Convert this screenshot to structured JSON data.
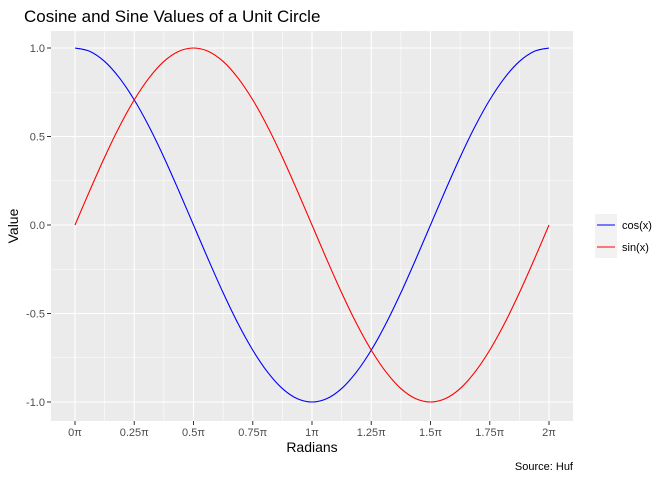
{
  "chart_data": {
    "type": "line",
    "title": "Cosine and Sine Values of a Unit Circle",
    "xlabel": "Radians",
    "ylabel": "Value",
    "caption": "Source: Huf",
    "x_unit": "π",
    "xlim": [
      0,
      2
    ],
    "ylim": [
      -1.0,
      1.0
    ],
    "x_ticks": [
      0,
      0.25,
      0.5,
      0.75,
      1,
      1.25,
      1.5,
      1.75,
      2
    ],
    "x_tick_labels": [
      "0π",
      "0.25π",
      "0.5π",
      "0.75π",
      "1π",
      "1.25π",
      "1.5π",
      "1.75π",
      "2π"
    ],
    "y_ticks": [
      1.0,
      0.5,
      0.0,
      -0.5,
      -1.0
    ],
    "y_tick_labels": [
      "1.0",
      "0.5",
      "0.0",
      "-0.5",
      "-1.0"
    ],
    "grid": true,
    "legend_position": "right",
    "x": [
      0,
      0.0625,
      0.125,
      0.1875,
      0.25,
      0.3125,
      0.375,
      0.4375,
      0.5,
      0.5625,
      0.625,
      0.6875,
      0.75,
      0.8125,
      0.875,
      0.9375,
      1,
      1.0625,
      1.125,
      1.1875,
      1.25,
      1.3125,
      1.375,
      1.4375,
      1.5,
      1.5625,
      1.625,
      1.6875,
      1.75,
      1.8125,
      1.875,
      1.9375,
      2
    ],
    "series": [
      {
        "name": "cos(x)",
        "color": "#0000ff",
        "values": [
          1.0,
          0.981,
          0.924,
          0.831,
          0.707,
          0.556,
          0.383,
          0.195,
          0.0,
          -0.195,
          -0.383,
          -0.556,
          -0.707,
          -0.831,
          -0.924,
          -0.981,
          -1.0,
          -0.981,
          -0.924,
          -0.831,
          -0.707,
          -0.556,
          -0.383,
          -0.195,
          0.0,
          0.195,
          0.383,
          0.556,
          0.707,
          0.831,
          0.924,
          0.981,
          1.0
        ]
      },
      {
        "name": "sin(x)",
        "color": "#ff0000",
        "values": [
          0.0,
          0.195,
          0.383,
          0.556,
          0.707,
          0.831,
          0.924,
          0.981,
          1.0,
          0.981,
          0.924,
          0.831,
          0.707,
          0.556,
          0.383,
          0.195,
          0.0,
          -0.195,
          -0.383,
          -0.556,
          -0.707,
          -0.831,
          -0.924,
          -0.981,
          -1.0,
          -0.981,
          -0.924,
          -0.831,
          -0.707,
          -0.556,
          -0.383,
          -0.195,
          0.0
        ]
      }
    ]
  }
}
